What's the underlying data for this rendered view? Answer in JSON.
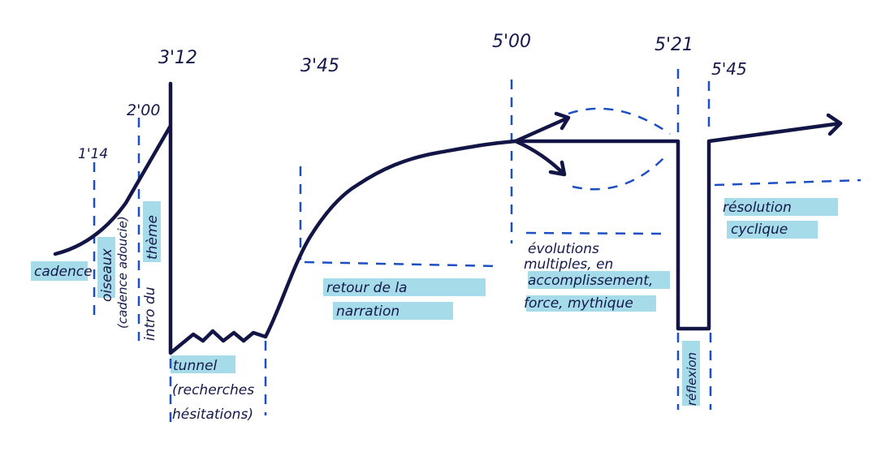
{
  "times": {
    "t1": "1'14",
    "t2": "2'00",
    "t3": "3'12",
    "t4": "3'45",
    "t5": "5'00",
    "t6": "5'21",
    "t7": "5'45"
  },
  "labels": {
    "cadence": "cadence",
    "oiseaux": "oiseaux",
    "cadence_adoucie": "(cadence adoucie)",
    "intro_du": "intro du",
    "theme": "thème",
    "tunnel": "tunnel",
    "recherches": "(recherches",
    "hesitations": "hésitations)",
    "retour_1": "retour de la",
    "retour_2": "narration",
    "evol_1": "évolutions",
    "evol_2": "multiples, en",
    "evol_3": "accomplissement,",
    "evol_4": "force, mythique",
    "reflexion": "réflexion",
    "resolution_1": "résolution",
    "resolution_2": "cyclique"
  },
  "colors": {
    "line": "#121545",
    "dashes": "#1d4fc4",
    "highlight": "#a6dcea"
  }
}
